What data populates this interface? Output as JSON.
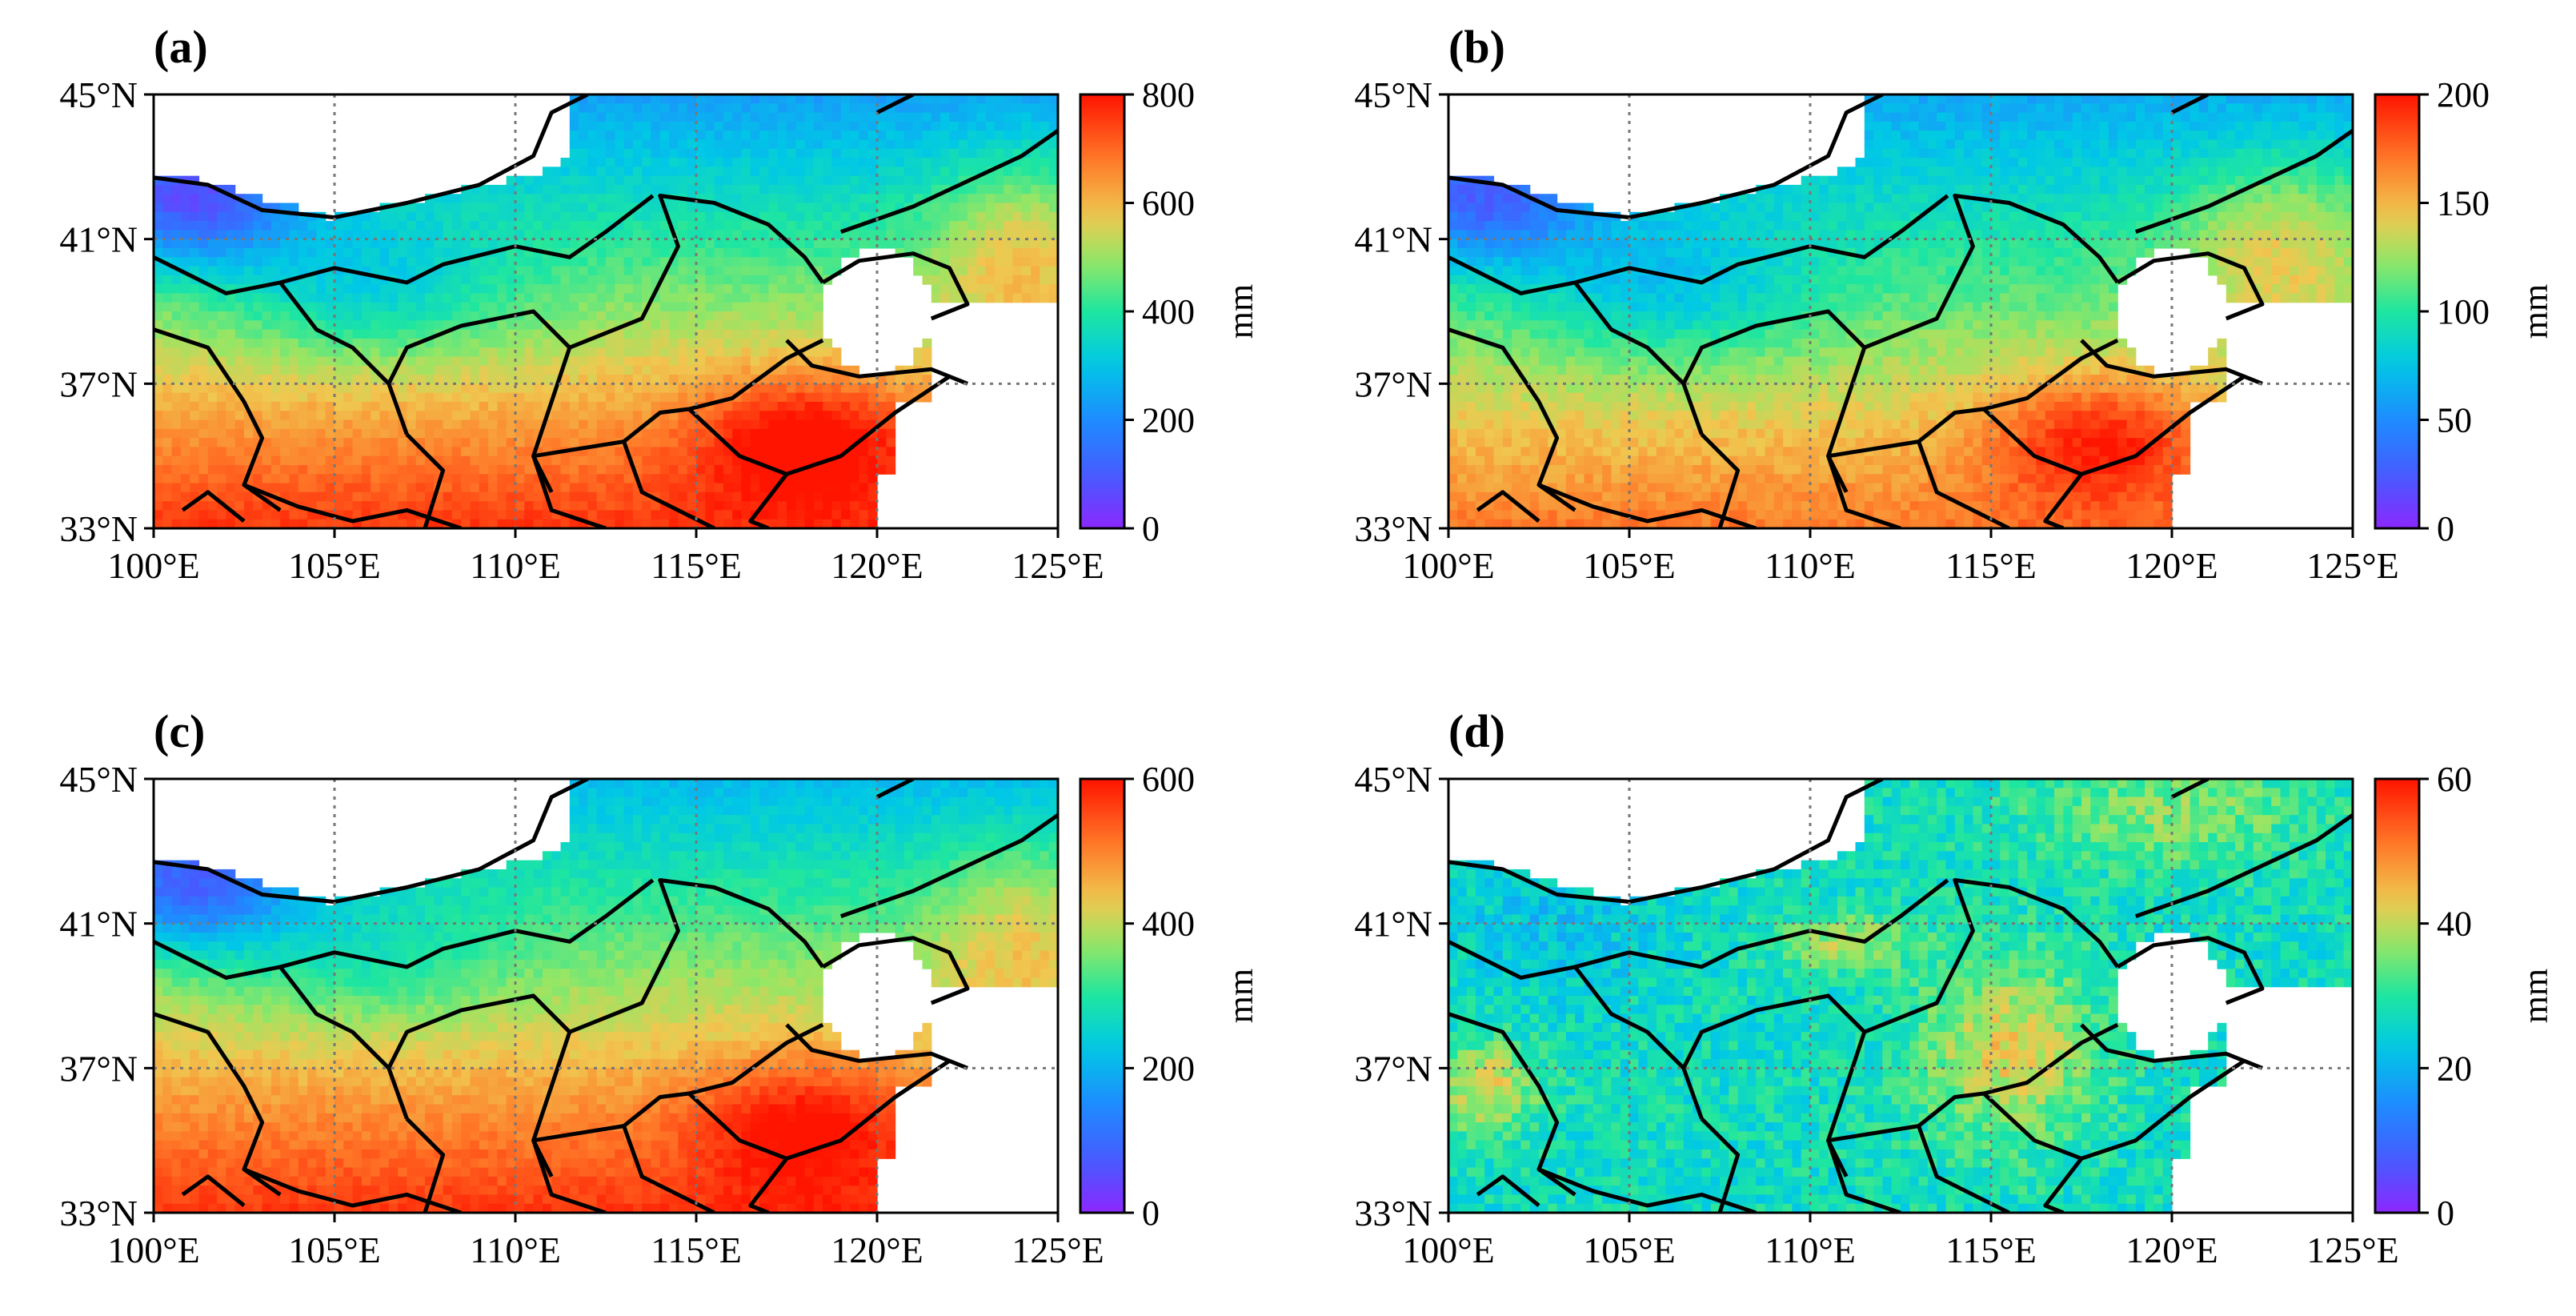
{
  "chart_data": [
    {
      "type": "heatmap",
      "panel": "(a)",
      "lon_range": [
        100,
        125
      ],
      "lat_range": [
        33,
        45
      ],
      "colorbar": {
        "min": 0,
        "max": 800,
        "ticks": [
          "0",
          "200",
          "400",
          "600",
          "800"
        ],
        "unit": "mm"
      },
      "pattern": "a"
    },
    {
      "type": "heatmap",
      "panel": "(b)",
      "lon_range": [
        100,
        125
      ],
      "lat_range": [
        33,
        45
      ],
      "colorbar": {
        "min": 0,
        "max": 200,
        "ticks": [
          "0",
          "50",
          "100",
          "150",
          "200"
        ],
        "unit": "mm"
      },
      "pattern": "b"
    },
    {
      "type": "heatmap",
      "panel": "(c)",
      "lon_range": [
        100,
        125
      ],
      "lat_range": [
        33,
        45
      ],
      "colorbar": {
        "min": 0,
        "max": 600,
        "ticks": [
          "0",
          "200",
          "400",
          "600"
        ],
        "unit": "mm"
      },
      "pattern": "c"
    },
    {
      "type": "heatmap",
      "panel": "(d)",
      "lon_range": [
        100,
        125
      ],
      "lat_range": [
        33,
        45
      ],
      "colorbar": {
        "min": 0,
        "max": 60,
        "ticks": [
          "0",
          "20",
          "40",
          "60"
        ],
        "unit": "mm"
      },
      "pattern": "d"
    }
  ],
  "axes": {
    "x_ticks": [
      100,
      105,
      110,
      115,
      120,
      125
    ],
    "x_tick_labels": [
      "100°E",
      "105°E",
      "110°E",
      "115°E",
      "120°E",
      "125°E"
    ],
    "y_ticks": [
      33,
      37,
      41,
      45
    ],
    "y_tick_labels": [
      "33°N",
      "37°N",
      "41°N",
      "45°N"
    ],
    "gridlines": "dotted"
  }
}
